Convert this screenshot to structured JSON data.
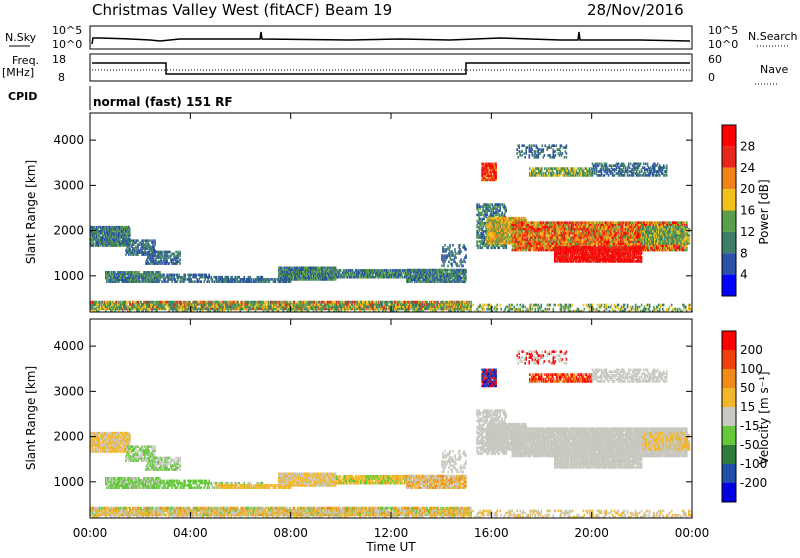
{
  "header": {
    "station": "Christmas Valley West (fitACF)",
    "beam": "Beam 19",
    "date": "28/Nov/2016"
  },
  "strip": {
    "nsky_label": "N.Sky",
    "nsky_hi": "10^5",
    "nsky_lo": "10^0",
    "nsearch_label": "N.Search",
    "nsearch_hi": "10^5",
    "nsearch_lo": "10^0",
    "freq_label": "Freq.",
    "freq_unit": "[MHz]",
    "freq_hi": "18",
    "freq_lo": "8",
    "nave_label": "Nave",
    "nave_hi": "60",
    "nave_lo": "0",
    "cpid_label": "CPID",
    "cpid_value": "normal (fast) 151 RF"
  },
  "chart_data": [
    {
      "type": "heatmap",
      "name": "power",
      "ylabel": "Slant Range [km]",
      "yticks": [
        "1000",
        "2000",
        "3000",
        "4000"
      ],
      "ylim": [
        200,
        4600
      ],
      "xticks": [
        "00:00",
        "04:00",
        "08:00",
        "12:00",
        "16:00",
        "20:00",
        "00:00"
      ],
      "xlim_hours": [
        0,
        24
      ],
      "colorbar_label": "Power [dB]",
      "colorbar_ticks": [
        "28",
        "24",
        "20",
        "16",
        "12",
        "8",
        "4"
      ],
      "colors": [
        "#0000ff",
        "#2a50a8",
        "#3e7f6a",
        "#5a9e4a",
        "#f2c21a",
        "#f08418",
        "#e8261a",
        "#ff0000"
      ]
    },
    {
      "type": "heatmap",
      "name": "velocity",
      "ylabel": "Slant Range [km]",
      "yticks": [
        "1000",
        "2000",
        "3000",
        "4000"
      ],
      "ylim": [
        200,
        4600
      ],
      "xticks": [
        "00:00",
        "04:00",
        "08:00",
        "12:00",
        "16:00",
        "20:00",
        "00:00"
      ],
      "xlabel": "Time UT",
      "colorbar_label": "Velocity [m s⁻¹]",
      "colorbar_ticks": [
        "200",
        "100",
        "50",
        "15",
        "-15",
        "-50",
        "-100",
        "-200"
      ],
      "colors": [
        "#0000e0",
        "#1f4fa8",
        "#2e7d3a",
        "#63c93a",
        "#c8c8c0",
        "#f2b62a",
        "#f08a18",
        "#f04010",
        "#ff0000"
      ]
    }
  ]
}
